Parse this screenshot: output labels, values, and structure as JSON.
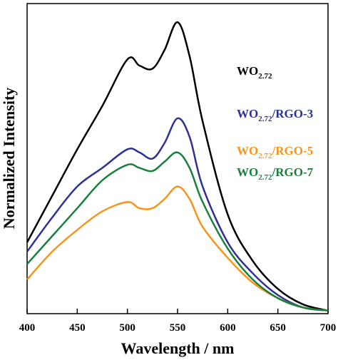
{
  "chart_data": {
    "type": "line",
    "x_label": "Wavelength / nm",
    "y_label": "Normalized Intensity",
    "x": [
      400,
      425,
      450,
      475,
      500,
      512,
      525,
      537,
      550,
      562,
      575,
      600,
      625,
      650,
      675,
      700
    ],
    "series": [
      {
        "name": "WO2.72",
        "color": "#000000",
        "values": [
          0.23,
          0.38,
          0.53,
          0.67,
          0.82,
          0.8,
          0.79,
          0.85,
          0.94,
          0.83,
          0.62,
          0.32,
          0.17,
          0.08,
          0.03,
          0.01
        ]
      },
      {
        "name": "WO2.72/RGO-3",
        "color": "#2e3192",
        "values": [
          0.2,
          0.31,
          0.41,
          0.47,
          0.53,
          0.52,
          0.5,
          0.55,
          0.63,
          0.57,
          0.41,
          0.23,
          0.13,
          0.06,
          0.02,
          0.01
        ]
      },
      {
        "name": "WO2.72/RGO-5",
        "color": "#f7941d",
        "values": [
          0.11,
          0.2,
          0.27,
          0.33,
          0.36,
          0.34,
          0.34,
          0.37,
          0.41,
          0.37,
          0.28,
          0.18,
          0.1,
          0.05,
          0.02,
          0.01
        ]
      },
      {
        "name": "WO2.72/RGO-7",
        "color": "#1a7f3c",
        "values": [
          0.16,
          0.25,
          0.34,
          0.43,
          0.48,
          0.47,
          0.46,
          0.49,
          0.52,
          0.47,
          0.36,
          0.21,
          0.11,
          0.05,
          0.02,
          0.01
        ]
      }
    ],
    "xlim": [
      400,
      700
    ],
    "xticks": [
      400,
      450,
      500,
      550,
      600,
      650,
      700
    ],
    "ylim": [
      0,
      1
    ]
  }
}
